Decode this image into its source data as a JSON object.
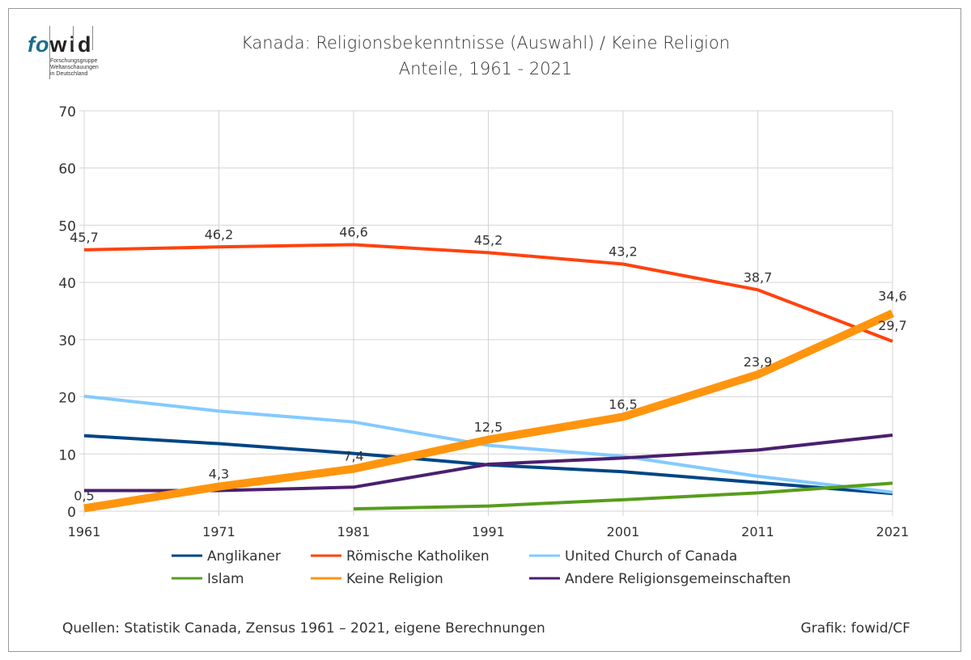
{
  "logo": {
    "part1": "fo",
    "part2": "wid",
    "subtitle_lines": [
      "Forschungsgruppe",
      "Weltanschauungen",
      "in Deutschland"
    ]
  },
  "footer": {
    "source": "Quellen: Statistik Canada, Zensus 1961 – 2021, eigene Berechnungen",
    "credit": "Grafik: fowid/CF"
  },
  "chart_data": {
    "type": "line",
    "title": "Kanada: Religionsbekenntnisse (Auswahl) / Keine Religion",
    "subtitle": "Anteile, 1961 - 2021",
    "xlabel": "",
    "ylabel": "",
    "x": [
      "1961",
      "1971",
      "1981",
      "1991",
      "2001",
      "2011",
      "2021"
    ],
    "ylim": [
      0,
      70
    ],
    "yticks": [
      0,
      10,
      20,
      30,
      40,
      50,
      60,
      70
    ],
    "grid": true,
    "legend_position": "bottom",
    "series": [
      {
        "name": "Anglikaner",
        "color": "#004586",
        "values": [
          13.2,
          11.8,
          10.1,
          8.1,
          6.9,
          5.0,
          3.1
        ],
        "labels": null
      },
      {
        "name": "Römische Katholiken",
        "color": "#ff420e",
        "values": [
          45.7,
          46.2,
          46.6,
          45.2,
          43.2,
          38.7,
          29.7
        ],
        "labels": [
          "45,7",
          "46,2",
          "46,6",
          "45,2",
          "43,2",
          "38,7",
          "29,7"
        ]
      },
      {
        "name": "United Church of Canada",
        "color": "#83caff",
        "values": [
          20.1,
          17.5,
          15.6,
          11.5,
          9.6,
          6.1,
          3.3
        ],
        "labels": null
      },
      {
        "name": "Islam",
        "color": "#579d1c",
        "values": [
          null,
          null,
          0.4,
          0.9,
          2.0,
          3.2,
          4.9
        ],
        "labels": null
      },
      {
        "name": "Keine Religion",
        "color": "#ff950e",
        "values": [
          0.5,
          4.3,
          7.4,
          12.5,
          16.5,
          23.9,
          34.6
        ],
        "labels": [
          "0,5",
          "4,3",
          "7,4",
          "12,5",
          "16,5",
          "23,9",
          "34,6"
        ]
      },
      {
        "name": "Andere Religionsgemeinschaften",
        "color": "#4b1f6f",
        "values": [
          3.6,
          3.6,
          4.2,
          8.2,
          9.3,
          10.7,
          13.3
        ],
        "labels": null
      }
    ]
  }
}
